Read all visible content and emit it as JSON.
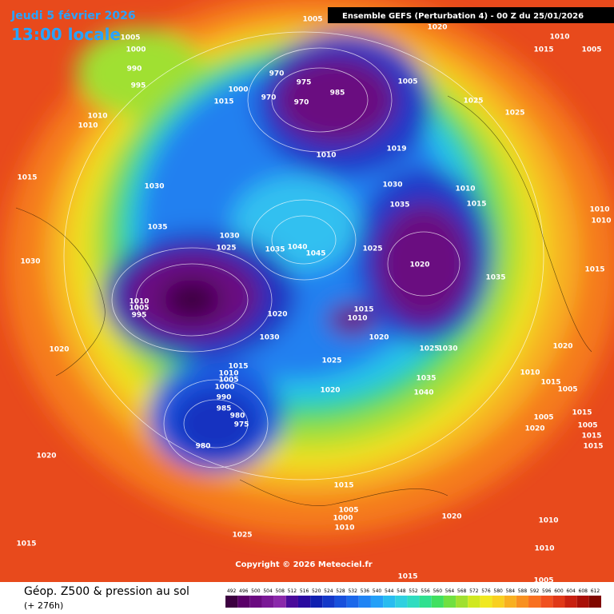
{
  "header": {
    "date": "Jeudi 5 février 2026",
    "time": "13:00 locale",
    "run": "Ensemble GEFS  (Perturbation 4)  -  00 Z du 25/01/2026"
  },
  "copyright": "Copyright © 2026 Meteociel.fr",
  "legend": {
    "title": "Géop. Z500 & pression au sol",
    "lead": "(+ 276h)",
    "ticks": [
      492,
      496,
      500,
      504,
      508,
      512,
      516,
      520,
      524,
      528,
      532,
      536,
      540,
      544,
      548,
      552,
      556,
      560,
      564,
      568,
      572,
      576,
      580,
      584,
      588,
      592,
      596,
      600,
      604,
      608,
      612
    ],
    "colors": [
      "#3c0040",
      "#5a0068",
      "#6a0a80",
      "#7a1896",
      "#8a28aa",
      "#4a0a9a",
      "#2a0aa0",
      "#1020b0",
      "#1438c8",
      "#1850dc",
      "#1c68ea",
      "#2084f4",
      "#24a0f8",
      "#28bcf0",
      "#30d0e0",
      "#30dcc0",
      "#30e090",
      "#40e060",
      "#70e040",
      "#a0e030",
      "#d0e820",
      "#f0e820",
      "#f8d020",
      "#f8b020",
      "#f89020",
      "#f87020",
      "#f05020",
      "#e03818",
      "#c82010",
      "#a81008",
      "#800800"
    ]
  },
  "isobar_labels": [
    1005,
    1020,
    1010,
    1015,
    1005,
    1005,
    1000,
    990,
    995,
    970,
    975,
    985,
    970,
    970,
    1000,
    1015,
    1005,
    1010,
    1010,
    1025,
    1025,
    1010,
    1015,
    1030,
    1019,
    1030,
    1010,
    1015,
    1035,
    1010,
    1010,
    1035,
    1030,
    1025,
    1035,
    1040,
    1045,
    1025,
    1020,
    1030,
    1015,
    1035,
    1010,
    1005,
    995,
    1020,
    1015,
    1010,
    1030,
    1020,
    1025,
    1030,
    1020,
    1020,
    1025,
    1015,
    1010,
    1005,
    1000,
    1010,
    1015,
    1035,
    1005,
    1020,
    1040,
    990,
    985,
    980,
    975,
    1005,
    1015,
    1020,
    1005,
    1015,
    1015,
    980,
    1020,
    1015,
    1005,
    1000,
    1010,
    1020,
    1010,
    1025,
    1015,
    1010,
    1015,
    1005
  ]
}
